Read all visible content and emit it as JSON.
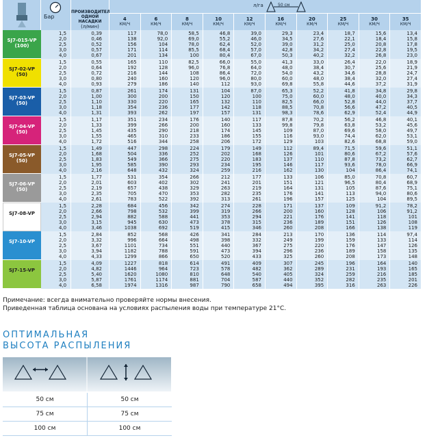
{
  "header": {
    "pressure": "Бар",
    "flow": "ПРОИЗВОДИТЕЛЬНОСТЬ ОДНОЙ НАСАДКИ",
    "flow_unit": "(л/мин)",
    "rate_unit": "л/га",
    "spacing": "50 см",
    "speed_unit": "КМ/Ч",
    "speeds": [
      "4",
      "6",
      "8",
      "10",
      "12",
      "16",
      "20",
      "25",
      "30",
      "35"
    ]
  },
  "groups": [
    {
      "name": "SJ7-015-VP",
      "code": "(100)",
      "pressures": [
        "1,5",
        "2,0",
        "2,5",
        "3,0",
        "4,0"
      ],
      "flows": [
        "0,39",
        "0,46",
        "0,52",
        "0,57",
        "0,67"
      ],
      "rates": [
        [
          "117",
          "78,0",
          "58,5",
          "46,8",
          "39,0",
          "29,3",
          "23,4",
          "18,7",
          "15,6",
          "13,4"
        ],
        [
          "138",
          "92,0",
          "69,0",
          "55,2",
          "46,0",
          "34,5",
          "27,6",
          "22,1",
          "18,4",
          "15,8"
        ],
        [
          "156",
          "104",
          "78,0",
          "62,4",
          "52,0",
          "39,0",
          "31,2",
          "25,0",
          "20,8",
          "17,8"
        ],
        [
          "171",
          "114",
          "85,5",
          "68,4",
          "57,0",
          "42,8",
          "34,2",
          "27,4",
          "22,8",
          "19,5"
        ],
        [
          "201",
          "134",
          "100",
          "80,4",
          "67,0",
          "50,3",
          "40,2",
          "32,2",
          "26,8",
          "23,0"
        ]
      ]
    },
    {
      "name": "SJ7-02-VP",
      "code": "(50)",
      "pressures": [
        "1,5",
        "2,0",
        "2,5",
        "3,0",
        "4,0"
      ],
      "flows": [
        "0,55",
        "0,64",
        "0,72",
        "0,80",
        "0,93"
      ],
      "rates": [
        [
          "165",
          "110",
          "82,5",
          "66,0",
          "55,0",
          "41,3",
          "33,0",
          "26,4",
          "22,0",
          "18,9"
        ],
        [
          "192",
          "128",
          "96,0",
          "76,8",
          "64,0",
          "48,0",
          "38,4",
          "30,7",
          "25,6",
          "21,9"
        ],
        [
          "216",
          "144",
          "108",
          "86,4",
          "72,0",
          "54,0",
          "43,2",
          "34,6",
          "28,8",
          "24,7"
        ],
        [
          "240",
          "160",
          "120",
          "96,0",
          "80,0",
          "60,0",
          "48,0",
          "38,4",
          "32,0",
          "27,4"
        ],
        [
          "279",
          "186",
          "140",
          "112",
          "93,0",
          "69,8",
          "55,8",
          "44,6",
          "37,2",
          "31,9"
        ]
      ]
    },
    {
      "name": "SJ7-03-VP",
      "code": "(50)",
      "pressures": [
        "1,5",
        "2,0",
        "2,5",
        "3,0",
        "4,0"
      ],
      "flows": [
        "0,87",
        "1,00",
        "1,10",
        "1,18",
        "1,31"
      ],
      "rates": [
        [
          "261",
          "174",
          "131",
          "104",
          "87,0",
          "65,3",
          "52,2",
          "41,8",
          "34,8",
          "29,8"
        ],
        [
          "300",
          "200",
          "150",
          "120",
          "100",
          "75,0",
          "60,0",
          "48,0",
          "40,0",
          "34,3"
        ],
        [
          "330",
          "220",
          "165",
          "132",
          "110",
          "82,5",
          "66,0",
          "52,8",
          "44,0",
          "37,7"
        ],
        [
          "354",
          "236",
          "177",
          "142",
          "118",
          "88,5",
          "70,8",
          "56,6",
          "47,2",
          "40,5"
        ],
        [
          "393",
          "262",
          "197",
          "157",
          "131",
          "98,3",
          "78,6",
          "62,9",
          "52,4",
          "44,9"
        ]
      ]
    },
    {
      "name": "SJ7-04-VP",
      "code": "(50)",
      "pressures": [
        "1,5",
        "2,0",
        "2,5",
        "3,0",
        "4,0"
      ],
      "flows": [
        "1,17",
        "1,33",
        "1,45",
        "1,55",
        "1,72"
      ],
      "rates": [
        [
          "351",
          "234",
          "176",
          "140",
          "117",
          "87,8",
          "70,2",
          "56,2",
          "46,8",
          "40,1"
        ],
        [
          "399",
          "266",
          "200",
          "160",
          "133",
          "99,8",
          "79,8",
          "63,8",
          "53,2",
          "45,6"
        ],
        [
          "435",
          "290",
          "218",
          "174",
          "145",
          "109",
          "87,0",
          "69,6",
          "58,0",
          "49,7"
        ],
        [
          "465",
          "310",
          "233",
          "186",
          "155",
          "116",
          "93,0",
          "74,4",
          "62,0",
          "53,1"
        ],
        [
          "516",
          "344",
          "258",
          "206",
          "172",
          "129",
          "103",
          "82,6",
          "68,8",
          "59,0"
        ]
      ]
    },
    {
      "name": "SJ7-05-VP",
      "code": "(50)",
      "pressures": [
        "1,5",
        "2,0",
        "2,5",
        "3,0",
        "4,0"
      ],
      "flows": [
        "1,49",
        "1,68",
        "1,83",
        "1,95",
        "2,16"
      ],
      "rates": [
        [
          "447",
          "298",
          "224",
          "179",
          "149",
          "112",
          "89,4",
          "71,5",
          "59,6",
          "51,1"
        ],
        [
          "504",
          "336",
          "252",
          "202",
          "168",
          "126",
          "101",
          "80,6",
          "67,2",
          "57,6"
        ],
        [
          "549",
          "366",
          "275",
          "220",
          "183",
          "137",
          "110",
          "87,8",
          "73,2",
          "62,7"
        ],
        [
          "585",
          "390",
          "293",
          "234",
          "195",
          "146",
          "117",
          "93,6",
          "78,0",
          "66,9"
        ],
        [
          "648",
          "432",
          "324",
          "259",
          "216",
          "162",
          "130",
          "104",
          "86,4",
          "74,1"
        ]
      ]
    },
    {
      "name": "SJ7-06-VP",
      "code": "(50)",
      "pressures": [
        "1,5",
        "2,0",
        "2,5",
        "3,0",
        "4,0"
      ],
      "flows": [
        "1,77",
        "2,01",
        "2,19",
        "2,35",
        "2,61"
      ],
      "rates": [
        [
          "531",
          "354",
          "266",
          "212",
          "177",
          "133",
          "106",
          "85,0",
          "70,8",
          "60,7"
        ],
        [
          "603",
          "402",
          "302",
          "241",
          "201",
          "151",
          "121",
          "96,5",
          "80,4",
          "68,9"
        ],
        [
          "657",
          "438",
          "329",
          "263",
          "219",
          "164",
          "131",
          "105",
          "87,6",
          "75,1"
        ],
        [
          "705",
          "470",
          "353",
          "282",
          "235",
          "176",
          "141",
          "113",
          "94,0",
          "80,6"
        ],
        [
          "783",
          "522",
          "392",
          "313",
          "261",
          "196",
          "157",
          "125",
          "104",
          "89,5"
        ]
      ]
    },
    {
      "name": "SJ7-08-VP",
      "pressures": [
        "1,5",
        "2,0",
        "2,5",
        "3,0",
        "4,0"
      ],
      "flows": [
        "2,28",
        "2,66",
        "2,94",
        "3,15",
        "3,46"
      ],
      "rates": [
        [
          "684",
          "456",
          "342",
          "274",
          "228",
          "171",
          "137",
          "109",
          "91,2",
          "78,2"
        ],
        [
          "798",
          "532",
          "399",
          "319",
          "266",
          "200",
          "160",
          "128",
          "106",
          "91,2"
        ],
        [
          "882",
          "588",
          "441",
          "353",
          "294",
          "221",
          "176",
          "141",
          "118",
          "101"
        ],
        [
          "945",
          "630",
          "473",
          "378",
          "315",
          "236",
          "189",
          "151",
          "126",
          "108"
        ],
        [
          "1038",
          "692",
          "519",
          "415",
          "346",
          "260",
          "208",
          "166",
          "138",
          "119"
        ]
      ]
    },
    {
      "name": "SJ7-10-VP",
      "pressures": [
        "1,5",
        "2,0",
        "2,5",
        "3,0",
        "4,0"
      ],
      "flows": [
        "2,84",
        "3,32",
        "3,67",
        "3,94",
        "4,33"
      ],
      "rates": [
        [
          "852",
          "568",
          "426",
          "341",
          "284",
          "213",
          "170",
          "136",
          "114",
          "97,4"
        ],
        [
          "996",
          "664",
          "498",
          "398",
          "332",
          "249",
          "199",
          "159",
          "133",
          "114"
        ],
        [
          "1101",
          "734",
          "551",
          "440",
          "367",
          "275",
          "220",
          "176",
          "147",
          "126"
        ],
        [
          "1182",
          "788",
          "591",
          "473",
          "394",
          "296",
          "236",
          "189",
          "158",
          "135"
        ],
        [
          "1299",
          "866",
          "650",
          "520",
          "433",
          "325",
          "260",
          "208",
          "173",
          "148"
        ]
      ]
    },
    {
      "name": "SJ7-15-VP",
      "pressures": [
        "1,5",
        "2,0",
        "2,5",
        "3,0",
        "4,0"
      ],
      "flows": [
        "4,09",
        "4,82",
        "5,40",
        "5,87",
        "6,58"
      ],
      "rates": [
        [
          "1227",
          "818",
          "614",
          "491",
          "409",
          "307",
          "245",
          "196",
          "164",
          "140"
        ],
        [
          "1446",
          "964",
          "723",
          "578",
          "482",
          "362",
          "289",
          "231",
          "193",
          "165"
        ],
        [
          "1620",
          "1080",
          "810",
          "648",
          "540",
          "405",
          "324",
          "259",
          "216",
          "185"
        ],
        [
          "1761",
          "1174",
          "881",
          "704",
          "587",
          "440",
          "352",
          "282",
          "235",
          "201"
        ],
        [
          "1974",
          "1316",
          "987",
          "790",
          "658",
          "494",
          "395",
          "316",
          "263",
          "226"
        ]
      ]
    }
  ],
  "notes": [
    "Примечание: всегда внимательно проверяйте нормы внесения.",
    "Приведенная таблица основана на условиях распыления воды при температуре 21°C."
  ],
  "height_title": [
    "ОПТИМАЛЬНАЯ",
    "ВЫСОТА РАСПЫЛЕНИЯ"
  ],
  "height_rows": [
    [
      "50 см",
      "50 см"
    ],
    [
      "75 см",
      "75 см"
    ],
    [
      "100 см",
      "100 см"
    ]
  ]
}
